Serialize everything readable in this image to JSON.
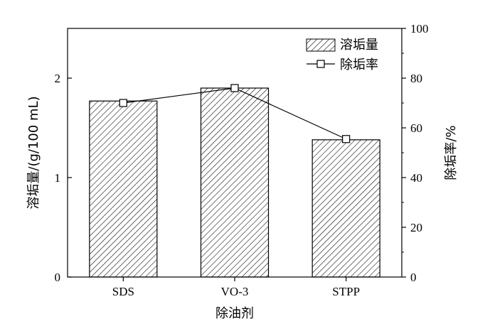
{
  "chart_data": {
    "type": "bar",
    "title": "",
    "xlabel": "除油剂",
    "ylabel": "溶垢量/(g/100 mL)",
    "y2label": "除垢率/%",
    "categories": [
      "SDS",
      "VO-3",
      "STPP"
    ],
    "ylim": [
      0,
      2.5
    ],
    "yticks": [
      "0",
      "1",
      "2"
    ],
    "y2lim": [
      0,
      100
    ],
    "y2ticks": [
      "0",
      "20",
      "40",
      "60",
      "80",
      "100"
    ],
    "series": [
      {
        "name": "溶垢量",
        "type": "bar",
        "axis": "left",
        "values": [
          1.77,
          1.9,
          1.38
        ]
      },
      {
        "name": "除垢率",
        "type": "line",
        "axis": "right",
        "values": [
          70,
          76,
          55.5
        ]
      }
    ],
    "legend_position": "top-right",
    "grid": false
  }
}
